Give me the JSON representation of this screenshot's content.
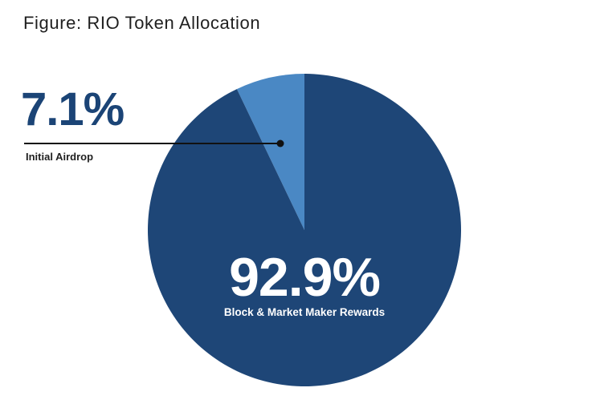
{
  "chart_data": {
    "type": "pie",
    "title": "Figure: RIO Token Allocation",
    "slices": [
      {
        "label": "Initial Airdrop",
        "value": 7.1,
        "value_label": "7.1%",
        "color": "#4a88c4"
      },
      {
        "label": "Block & Market Maker Rewards",
        "value": 92.9,
        "value_label": "92.9%",
        "color": "#1e4677"
      }
    ],
    "legend": "none"
  },
  "colors": {
    "leader_line": "#111111",
    "title": "#1f1f1f"
  }
}
